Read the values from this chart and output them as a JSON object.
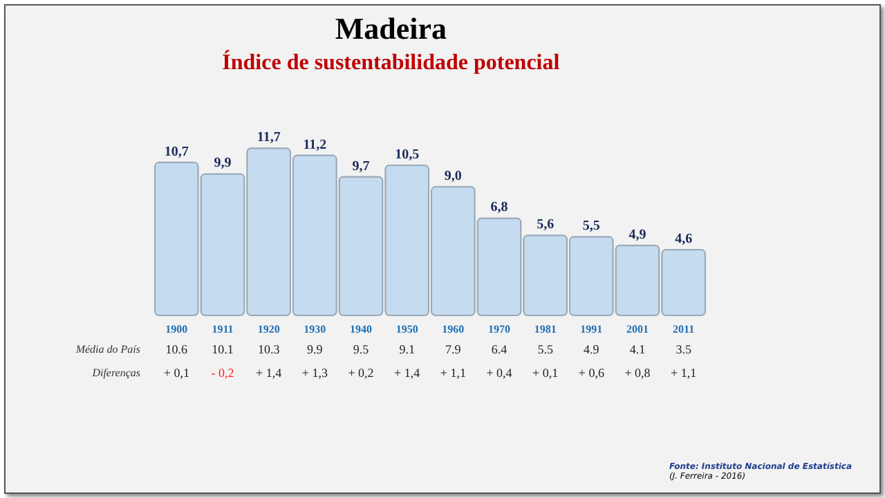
{
  "chart_data": {
    "type": "bar",
    "title": "Madeira",
    "subtitle": "Índice de sustentabilidade potencial",
    "categories": [
      "1900",
      "1911",
      "1920",
      "1930",
      "1940",
      "1950",
      "1960",
      "1970",
      "1981",
      "1991",
      "2001",
      "2011"
    ],
    "series": [
      {
        "color": "#c5dbef",
        "values": [
          10.7,
          9.9,
          11.7,
          11.2,
          9.7,
          10.5,
          9.0,
          6.8,
          5.6,
          5.5,
          4.9,
          4.6
        ],
        "value_labels": [
          "10,7",
          "9,9",
          "11,7",
          "11,2",
          "9,7",
          "10,5",
          "9,0",
          "6,8",
          "5,6",
          "5,5",
          "4,9",
          "4,6"
        ]
      }
    ],
    "ylim": [
      0,
      12
    ],
    "tick_labels": "x",
    "annotations": [
      "Média do País",
      "10.6",
      "10.1",
      "10.3",
      "9.9",
      "9.5",
      "9.1",
      "7.9",
      "6.4",
      "5.5",
      "4.9",
      "4.1",
      "3.5",
      "Diferenças",
      "+ 0,1",
      "- 0,2",
      "+ 1,4",
      "+ 1,3",
      "+ 0,2",
      "+ 1,4",
      "+ 1,1",
      "+ 0,4",
      "+ 0,1",
      "+ 0,6",
      "+ 0,8",
      "+ 1,1",
      "Fonte: Instituto Nacional de Estatística",
      "(J. Ferreira - 2016)"
    ]
  }
}
